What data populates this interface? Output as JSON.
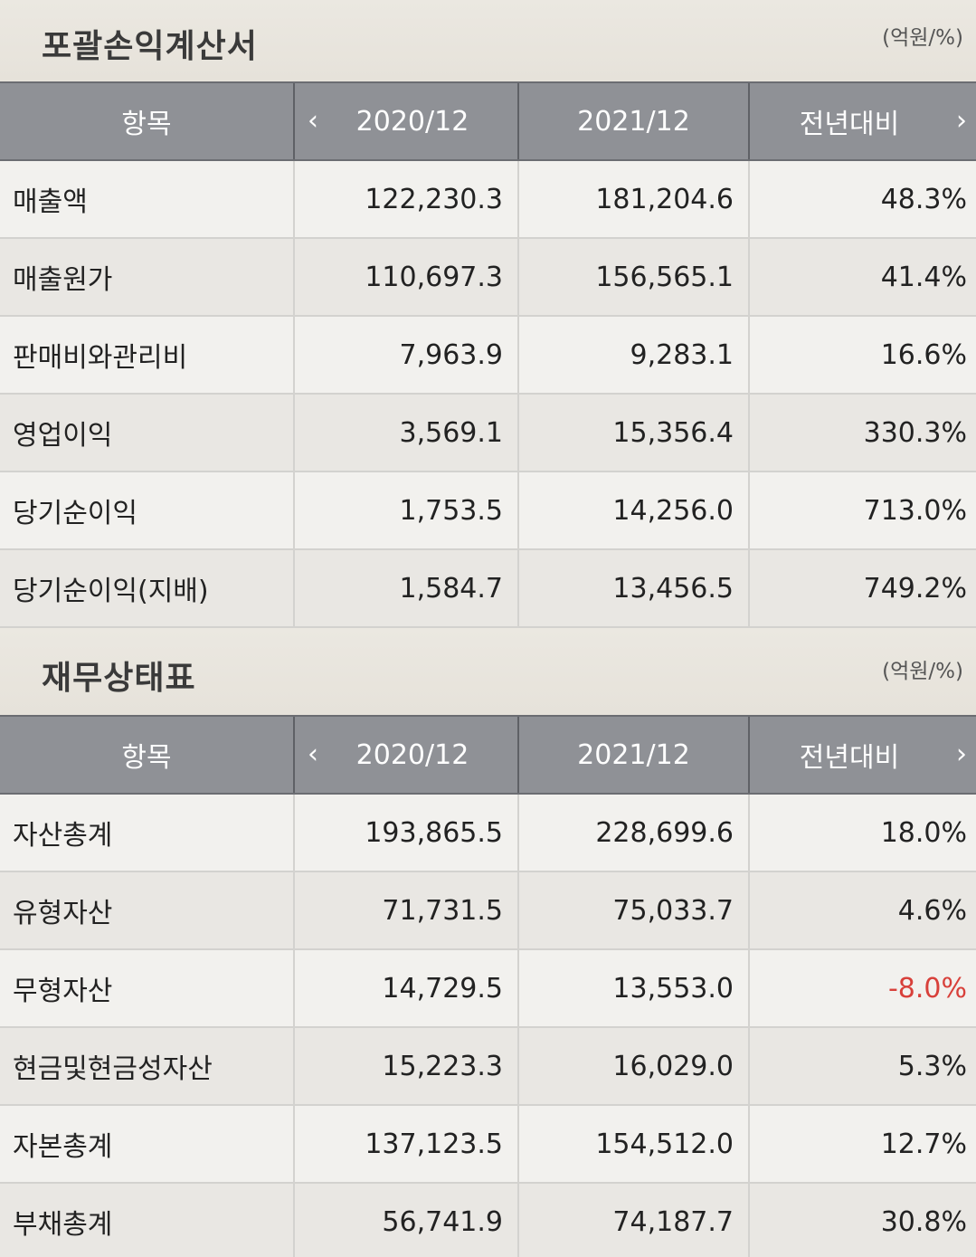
{
  "income": {
    "title": "포괄손익계산서",
    "unit": "(억원/%)",
    "headers": {
      "item": "항목",
      "prev_icon": "‹",
      "y2020": "2020/12",
      "y2021": "2021/12",
      "yoy": "전년대비",
      "next_icon": "›"
    },
    "rows": [
      {
        "label": "매출액",
        "y2020": "122,230.3",
        "y2021": "181,204.6",
        "yoy": "48.3%"
      },
      {
        "label": "매출원가",
        "y2020": "110,697.3",
        "y2021": "156,565.1",
        "yoy": "41.4%"
      },
      {
        "label": "판매비와관리비",
        "y2020": "7,963.9",
        "y2021": "9,283.1",
        "yoy": "16.6%"
      },
      {
        "label": "영업이익",
        "y2020": "3,569.1",
        "y2021": "15,356.4",
        "yoy": "330.3%"
      },
      {
        "label": "당기순이익",
        "y2020": "1,753.5",
        "y2021": "14,256.0",
        "yoy": "713.0%"
      },
      {
        "label": "당기순이익(지배)",
        "y2020": "1,584.7",
        "y2021": "13,456.5",
        "yoy": "749.2%"
      }
    ]
  },
  "balance": {
    "title": "재무상태표",
    "unit": "(억원/%)",
    "headers": {
      "item": "항목",
      "prev_icon": "‹",
      "y2020": "2020/12",
      "y2021": "2021/12",
      "yoy": "전년대비",
      "next_icon": "›"
    },
    "rows": [
      {
        "label": "자산총계",
        "y2020": "193,865.5",
        "y2021": "228,699.6",
        "yoy": "18.0%"
      },
      {
        "label": "유형자산",
        "y2020": "71,731.5",
        "y2021": "75,033.7",
        "yoy": "4.6%"
      },
      {
        "label": "무형자산",
        "y2020": "14,729.5",
        "y2021": "13,553.0",
        "yoy": "-8.0%"
      },
      {
        "label": "현금및현금성자산",
        "y2020": "15,223.3",
        "y2021": "16,029.0",
        "yoy": "5.3%"
      },
      {
        "label": "자본총계",
        "y2020": "137,123.5",
        "y2021": "154,512.0",
        "yoy": "12.7%"
      },
      {
        "label": "부채총계",
        "y2020": "56,741.9",
        "y2021": "74,187.7",
        "yoy": "30.8%"
      }
    ]
  },
  "colors": {
    "header_bg": "#8f9196",
    "negative": "#d8403a",
    "section_bg": "#e8e5de"
  }
}
